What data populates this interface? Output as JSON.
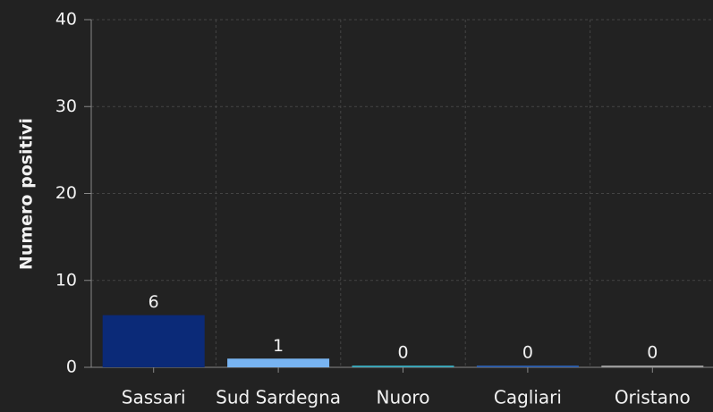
{
  "chart_data": {
    "type": "bar",
    "ylabel": "Numero positivi",
    "categories": [
      "Sassari",
      "Sud Sardegna",
      "Nuoro",
      "Cagliari",
      "Oristano"
    ],
    "values": [
      6,
      1,
      0,
      0,
      0
    ],
    "colors": [
      "#0b2a78",
      "#78b4f2",
      "#3aa3b5",
      "#2d5ca6",
      "#9a9a9a"
    ],
    "ylim": [
      0,
      40
    ],
    "yticks": [
      0,
      10,
      20,
      30,
      40
    ],
    "grid": true,
    "data_labels": true
  }
}
